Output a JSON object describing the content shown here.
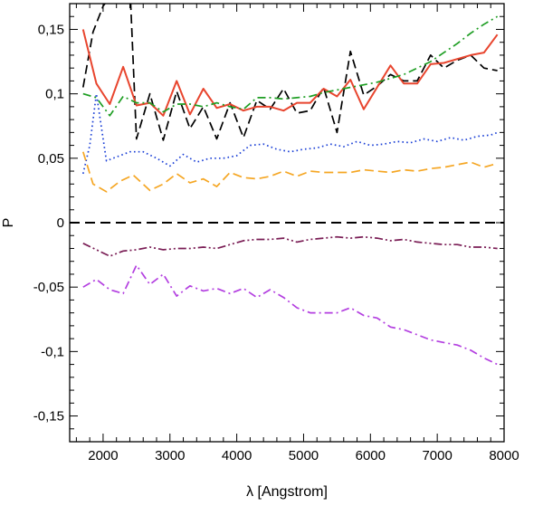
{
  "chart_data": {
    "type": "line",
    "title": "",
    "xlabel": "λ [Angstrom]",
    "ylabel": "P",
    "xlim": [
      1500,
      8000
    ],
    "ylim": [
      -0.17,
      0.17
    ],
    "xticks": [
      {
        "value": 2000,
        "label": "2000"
      },
      {
        "value": 3000,
        "label": "3000"
      },
      {
        "value": 4000,
        "label": "4000"
      },
      {
        "value": 5000,
        "label": "5000"
      },
      {
        "value": 6000,
        "label": "6000"
      },
      {
        "value": 7000,
        "label": "7000"
      },
      {
        "value": 8000,
        "label": "8000"
      }
    ],
    "yticks": [
      {
        "value": 0.15,
        "label": "0,15"
      },
      {
        "value": 0.1,
        "label": "0,1"
      },
      {
        "value": 0.05,
        "label": "0,05"
      },
      {
        "value": 0,
        "label": "0"
      },
      {
        "value": -0.05,
        "label": "-0,05"
      },
      {
        "value": -0.1,
        "label": "-0,1"
      },
      {
        "value": -0.15,
        "label": "-0,15"
      }
    ],
    "grid": false,
    "reference_line": {
      "y": 0,
      "color": "#000000",
      "style": "dashed"
    },
    "series": [
      {
        "color": "#000000",
        "style": "dashed",
        "points": [
          [
            1700,
            0.105
          ],
          [
            1850,
            0.148
          ],
          [
            2000,
            0.168
          ],
          [
            2100,
            0.175
          ],
          [
            2300,
            0.182
          ],
          [
            2400,
            0.185
          ],
          [
            2500,
            0.065
          ],
          [
            2700,
            0.1
          ],
          [
            2900,
            0.064
          ],
          [
            3100,
            0.102
          ],
          [
            3300,
            0.073
          ],
          [
            3500,
            0.09
          ],
          [
            3700,
            0.065
          ],
          [
            3900,
            0.093
          ],
          [
            4100,
            0.066
          ],
          [
            4300,
            0.095
          ],
          [
            4500,
            0.088
          ],
          [
            4700,
            0.104
          ],
          [
            4900,
            0.085
          ],
          [
            5100,
            0.087
          ],
          [
            5300,
            0.105
          ],
          [
            5500,
            0.07
          ],
          [
            5700,
            0.133
          ],
          [
            5900,
            0.099
          ],
          [
            6100,
            0.106
          ],
          [
            6300,
            0.115
          ],
          [
            6500,
            0.11
          ],
          [
            6700,
            0.11
          ],
          [
            6900,
            0.13
          ],
          [
            7100,
            0.12
          ],
          [
            7300,
            0.126
          ],
          [
            7500,
            0.13
          ],
          [
            7700,
            0.12
          ],
          [
            7900,
            0.118
          ]
        ]
      },
      {
        "color": "#e8452e",
        "style": "solid",
        "points": [
          [
            1700,
            0.15
          ],
          [
            1900,
            0.108
          ],
          [
            2100,
            0.092
          ],
          [
            2300,
            0.121
          ],
          [
            2500,
            0.091
          ],
          [
            2700,
            0.093
          ],
          [
            2900,
            0.083
          ],
          [
            3100,
            0.11
          ],
          [
            3300,
            0.084
          ],
          [
            3500,
            0.104
          ],
          [
            3700,
            0.089
          ],
          [
            3900,
            0.092
          ],
          [
            4100,
            0.087
          ],
          [
            4300,
            0.09
          ],
          [
            4500,
            0.09
          ],
          [
            4700,
            0.087
          ],
          [
            4900,
            0.093
          ],
          [
            5100,
            0.093
          ],
          [
            5300,
            0.104
          ],
          [
            5500,
            0.098
          ],
          [
            5700,
            0.111
          ],
          [
            5900,
            0.088
          ],
          [
            6100,
            0.105
          ],
          [
            6300,
            0.122
          ],
          [
            6500,
            0.108
          ],
          [
            6700,
            0.108
          ],
          [
            6900,
            0.123
          ],
          [
            7100,
            0.124
          ],
          [
            7300,
            0.127
          ],
          [
            7500,
            0.13
          ],
          [
            7700,
            0.132
          ],
          [
            7900,
            0.146
          ]
        ]
      },
      {
        "color": "#1e9e23",
        "style": "dashdot",
        "points": [
          [
            1700,
            0.1
          ],
          [
            1900,
            0.097
          ],
          [
            2100,
            0.083
          ],
          [
            2300,
            0.098
          ],
          [
            2500,
            0.093
          ],
          [
            2700,
            0.093
          ],
          [
            2900,
            0.086
          ],
          [
            3100,
            0.092
          ],
          [
            3300,
            0.092
          ],
          [
            3500,
            0.09
          ],
          [
            3700,
            0.093
          ],
          [
            3900,
            0.09
          ],
          [
            4100,
            0.088
          ],
          [
            4300,
            0.097
          ],
          [
            4500,
            0.097
          ],
          [
            4700,
            0.096
          ],
          [
            4900,
            0.097
          ],
          [
            5100,
            0.098
          ],
          [
            5300,
            0.101
          ],
          [
            5500,
            0.103
          ],
          [
            5700,
            0.105
          ],
          [
            5900,
            0.107
          ],
          [
            6100,
            0.109
          ],
          [
            6300,
            0.112
          ],
          [
            6500,
            0.115
          ],
          [
            6700,
            0.12
          ],
          [
            6900,
            0.125
          ],
          [
            7100,
            0.132
          ],
          [
            7300,
            0.139
          ],
          [
            7500,
            0.147
          ],
          [
            7700,
            0.154
          ],
          [
            7900,
            0.16
          ]
        ]
      },
      {
        "color": "#1a3fd6",
        "style": "dotted",
        "points": [
          [
            1700,
            0.038
          ],
          [
            1800,
            0.06
          ],
          [
            1900,
            0.1
          ],
          [
            2050,
            0.048
          ],
          [
            2200,
            0.051
          ],
          [
            2400,
            0.055
          ],
          [
            2600,
            0.055
          ],
          [
            2800,
            0.05
          ],
          [
            3000,
            0.044
          ],
          [
            3200,
            0.053
          ],
          [
            3400,
            0.047
          ],
          [
            3600,
            0.05
          ],
          [
            3800,
            0.05
          ],
          [
            4000,
            0.052
          ],
          [
            4200,
            0.06
          ],
          [
            4400,
            0.061
          ],
          [
            4600,
            0.057
          ],
          [
            4800,
            0.055
          ],
          [
            5000,
            0.057
          ],
          [
            5200,
            0.058
          ],
          [
            5400,
            0.061
          ],
          [
            5600,
            0.059
          ],
          [
            5800,
            0.063
          ],
          [
            6000,
            0.06
          ],
          [
            6200,
            0.061
          ],
          [
            6400,
            0.063
          ],
          [
            6600,
            0.062
          ],
          [
            6800,
            0.065
          ],
          [
            7000,
            0.063
          ],
          [
            7200,
            0.066
          ],
          [
            7400,
            0.064
          ],
          [
            7600,
            0.067
          ],
          [
            7800,
            0.068
          ],
          [
            7900,
            0.07
          ]
        ]
      },
      {
        "color": "#f5a623",
        "style": "dashed",
        "points": [
          [
            1700,
            0.055
          ],
          [
            1850,
            0.03
          ],
          [
            2050,
            0.024
          ],
          [
            2250,
            0.032
          ],
          [
            2450,
            0.037
          ],
          [
            2700,
            0.025
          ],
          [
            2900,
            0.03
          ],
          [
            3100,
            0.038
          ],
          [
            3300,
            0.031
          ],
          [
            3500,
            0.034
          ],
          [
            3700,
            0.028
          ],
          [
            3900,
            0.039
          ],
          [
            4100,
            0.035
          ],
          [
            4300,
            0.034
          ],
          [
            4500,
            0.036
          ],
          [
            4700,
            0.04
          ],
          [
            4900,
            0.036
          ],
          [
            5100,
            0.04
          ],
          [
            5300,
            0.039
          ],
          [
            5500,
            0.039
          ],
          [
            5700,
            0.039
          ],
          [
            5900,
            0.041
          ],
          [
            6100,
            0.04
          ],
          [
            6300,
            0.039
          ],
          [
            6500,
            0.041
          ],
          [
            6700,
            0.04
          ],
          [
            6900,
            0.042
          ],
          [
            7100,
            0.043
          ],
          [
            7300,
            0.045
          ],
          [
            7500,
            0.047
          ],
          [
            7700,
            0.043
          ],
          [
            7900,
            0.046
          ]
        ]
      },
      {
        "color": "#7a1d55",
        "style": "dashdotdot",
        "points": [
          [
            1700,
            -0.016
          ],
          [
            1900,
            -0.021
          ],
          [
            2100,
            -0.026
          ],
          [
            2300,
            -0.022
          ],
          [
            2500,
            -0.021
          ],
          [
            2700,
            -0.019
          ],
          [
            2900,
            -0.021
          ],
          [
            3100,
            -0.02
          ],
          [
            3300,
            -0.02
          ],
          [
            3500,
            -0.019
          ],
          [
            3700,
            -0.02
          ],
          [
            3900,
            -0.017
          ],
          [
            4100,
            -0.014
          ],
          [
            4300,
            -0.013
          ],
          [
            4500,
            -0.013
          ],
          [
            4700,
            -0.012
          ],
          [
            4900,
            -0.015
          ],
          [
            5100,
            -0.013
          ],
          [
            5300,
            -0.012
          ],
          [
            5500,
            -0.011
          ],
          [
            5700,
            -0.012
          ],
          [
            5900,
            -0.011
          ],
          [
            6100,
            -0.012
          ],
          [
            6300,
            -0.014
          ],
          [
            6500,
            -0.013
          ],
          [
            6700,
            -0.015
          ],
          [
            6900,
            -0.016
          ],
          [
            7100,
            -0.017
          ],
          [
            7300,
            -0.017
          ],
          [
            7500,
            -0.019
          ],
          [
            7700,
            -0.019
          ],
          [
            7900,
            -0.02
          ]
        ]
      },
      {
        "color": "#b33fe0",
        "style": "dashdot",
        "points": [
          [
            1700,
            -0.05
          ],
          [
            1900,
            -0.044
          ],
          [
            2100,
            -0.052
          ],
          [
            2300,
            -0.055
          ],
          [
            2500,
            -0.033
          ],
          [
            2700,
            -0.048
          ],
          [
            2900,
            -0.04
          ],
          [
            3100,
            -0.057
          ],
          [
            3300,
            -0.049
          ],
          [
            3500,
            -0.053
          ],
          [
            3700,
            -0.051
          ],
          [
            3900,
            -0.055
          ],
          [
            4100,
            -0.051
          ],
          [
            4300,
            -0.058
          ],
          [
            4500,
            -0.052
          ],
          [
            4700,
            -0.058
          ],
          [
            4900,
            -0.066
          ],
          [
            5100,
            -0.07
          ],
          [
            5300,
            -0.07
          ],
          [
            5500,
            -0.07
          ],
          [
            5700,
            -0.066
          ],
          [
            5900,
            -0.072
          ],
          [
            6100,
            -0.074
          ],
          [
            6300,
            -0.081
          ],
          [
            6500,
            -0.083
          ],
          [
            6700,
            -0.087
          ],
          [
            6900,
            -0.091
          ],
          [
            7100,
            -0.093
          ],
          [
            7300,
            -0.095
          ],
          [
            7500,
            -0.099
          ],
          [
            7700,
            -0.105
          ],
          [
            7900,
            -0.11
          ]
        ]
      }
    ]
  }
}
